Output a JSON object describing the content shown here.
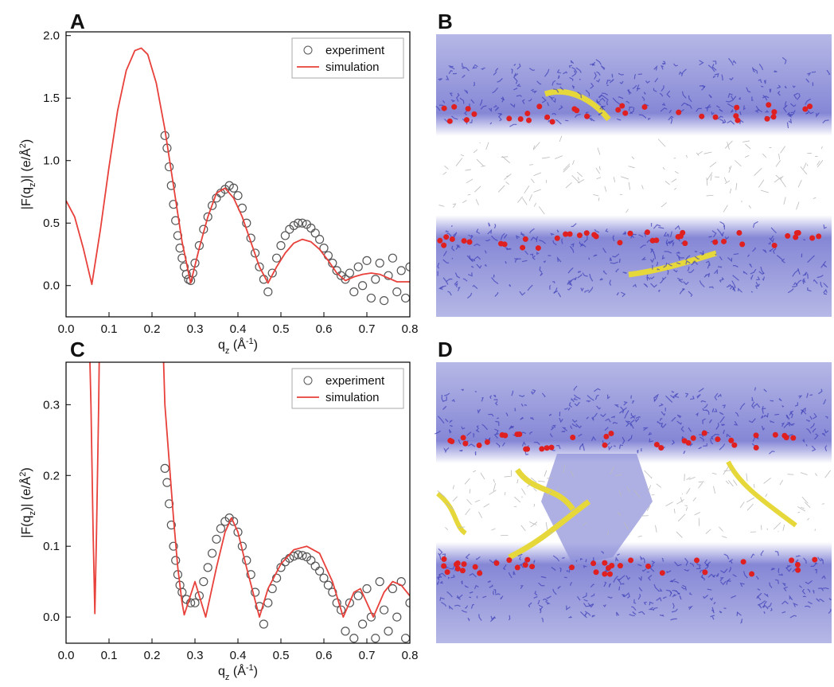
{
  "chart_data": [
    {
      "type": "line",
      "panel": "A",
      "xlabel_parts": [
        "q",
        "z",
        " (Å",
        "-1",
        ")"
      ],
      "ylabel_parts": [
        "|F(q",
        "z",
        ")| (e/Å",
        "2",
        ")"
      ],
      "xlim": [
        0,
        0.8
      ],
      "ylim": [
        -0.25,
        2.03
      ],
      "xticks": [
        {
          "value": 0,
          "label": "0.0"
        },
        0.1,
        0.2,
        0.3,
        0.4,
        0.5,
        0.6,
        0.7,
        0.8
      ],
      "yticks": [
        {
          "value": 0,
          "label": "0.0"
        },
        0.5,
        {
          "value": 1,
          "label": "1.0"
        },
        1.5,
        {
          "value": 2,
          "label": "2.0"
        }
      ],
      "legend": "upper right",
      "series": [
        {
          "name": "experiment",
          "type": "scatter",
          "color": "#555555",
          "x": [
            0.23,
            0.235,
            0.24,
            0.245,
            0.25,
            0.255,
            0.26,
            0.265,
            0.27,
            0.275,
            0.28,
            0.285,
            0.29,
            0.295,
            0.3,
            0.31,
            0.32,
            0.33,
            0.34,
            0.35,
            0.36,
            0.37,
            0.38,
            0.39,
            0.4,
            0.41,
            0.42,
            0.43,
            0.44,
            0.45,
            0.46,
            0.47,
            0.48,
            0.49,
            0.5,
            0.51,
            0.52,
            0.53,
            0.54,
            0.55,
            0.56,
            0.57,
            0.58,
            0.59,
            0.6,
            0.61,
            0.62,
            0.63,
            0.64,
            0.65,
            0.66,
            0.67,
            0.68,
            0.69,
            0.7,
            0.71,
            0.72,
            0.73,
            0.74,
            0.75,
            0.76,
            0.77,
            0.78,
            0.79,
            0.8
          ],
          "values": [
            1.2,
            1.1,
            0.95,
            0.8,
            0.65,
            0.52,
            0.4,
            0.3,
            0.22,
            0.15,
            0.09,
            0.05,
            0.04,
            0.1,
            0.18,
            0.32,
            0.45,
            0.55,
            0.64,
            0.7,
            0.74,
            0.77,
            0.8,
            0.78,
            0.72,
            0.62,
            0.5,
            0.38,
            0.26,
            0.15,
            0.05,
            -0.05,
            0.1,
            0.22,
            0.32,
            0.4,
            0.45,
            0.48,
            0.5,
            0.5,
            0.49,
            0.46,
            0.42,
            0.37,
            0.3,
            0.24,
            0.18,
            0.12,
            0.08,
            0.05,
            0.1,
            -0.05,
            0.15,
            0,
            0.2,
            -0.1,
            0.05,
            0.18,
            -0.12,
            0.08,
            0.22,
            -0.05,
            0.12,
            -0.1,
            0.15
          ]
        },
        {
          "name": "simulation",
          "type": "line",
          "color": "#e8403a",
          "x": [
            0,
            0.02,
            0.04,
            0.06,
            0.08,
            0.1,
            0.12,
            0.14,
            0.16,
            0.175,
            0.19,
            0.21,
            0.23,
            0.25,
            0.27,
            0.29,
            0.31,
            0.33,
            0.35,
            0.37,
            0.39,
            0.41,
            0.43,
            0.45,
            0.47,
            0.49,
            0.51,
            0.53,
            0.55,
            0.57,
            0.59,
            0.61,
            0.63,
            0.65,
            0.67,
            0.69,
            0.71,
            0.73,
            0.75,
            0.77,
            0.79,
            0.8
          ],
          "values": [
            0.68,
            0.55,
            0.3,
            0.01,
            0.45,
            0.95,
            1.4,
            1.72,
            1.88,
            1.9,
            1.85,
            1.62,
            1.25,
            0.8,
            0.35,
            0.02,
            0.3,
            0.55,
            0.74,
            0.78,
            0.7,
            0.55,
            0.35,
            0.15,
            0.02,
            0.15,
            0.26,
            0.34,
            0.37,
            0.35,
            0.29,
            0.2,
            0.1,
            0.04,
            0.07,
            0.09,
            0.1,
            0.09,
            0.06,
            0.03,
            0.03,
            0.03
          ]
        }
      ]
    },
    {
      "type": "line",
      "panel": "C",
      "xlabel_parts": [
        "q",
        "z",
        " (Å",
        "-1",
        ")"
      ],
      "ylabel_parts": [
        "|F(q",
        "z",
        ")| (e/Å",
        "2",
        ")"
      ],
      "xlim": [
        0,
        0.8
      ],
      "ylim": [
        -0.037,
        0.36
      ],
      "xticks": [
        {
          "value": 0,
          "label": "0.0"
        },
        0.1,
        0.2,
        0.3,
        0.4,
        0.5,
        0.6,
        0.7,
        0.8
      ],
      "yticks": [
        {
          "value": 0,
          "label": "0.0"
        },
        0.1,
        0.2,
        0.3
      ],
      "legend": "upper right",
      "series": [
        {
          "name": "experiment",
          "type": "scatter",
          "color": "#555555",
          "x": [
            0.23,
            0.235,
            0.24,
            0.245,
            0.25,
            0.255,
            0.26,
            0.265,
            0.27,
            0.28,
            0.29,
            0.3,
            0.31,
            0.32,
            0.33,
            0.34,
            0.35,
            0.36,
            0.37,
            0.38,
            0.39,
            0.4,
            0.41,
            0.42,
            0.43,
            0.44,
            0.45,
            0.46,
            0.47,
            0.48,
            0.49,
            0.5,
            0.51,
            0.52,
            0.53,
            0.54,
            0.55,
            0.56,
            0.57,
            0.58,
            0.59,
            0.6,
            0.61,
            0.62,
            0.63,
            0.64,
            0.65,
            0.66,
            0.67,
            0.68,
            0.69,
            0.7,
            0.71,
            0.72,
            0.73,
            0.74,
            0.75,
            0.76,
            0.77,
            0.78,
            0.79,
            0.8
          ],
          "values": [
            0.21,
            0.19,
            0.16,
            0.13,
            0.1,
            0.08,
            0.06,
            0.045,
            0.035,
            0.025,
            0.02,
            0.02,
            0.03,
            0.05,
            0.07,
            0.09,
            0.11,
            0.125,
            0.135,
            0.14,
            0.135,
            0.12,
            0.1,
            0.08,
            0.06,
            0.035,
            0.015,
            -0.01,
            0.02,
            0.04,
            0.055,
            0.07,
            0.078,
            0.083,
            0.086,
            0.088,
            0.087,
            0.085,
            0.08,
            0.072,
            0.065,
            0.055,
            0.045,
            0.035,
            0.02,
            0.01,
            -0.02,
            0.02,
            -0.03,
            0.03,
            -0.01,
            0.04,
            0,
            -0.03,
            0.05,
            0.01,
            -0.02,
            0.04,
            0,
            0.05,
            -0.03,
            0.02
          ]
        },
        {
          "name": "simulation",
          "type": "line",
          "color": "#e8403a",
          "x": [
            0.05,
            0.058,
            0.063,
            0.067,
            0.071,
            0.076,
            0.08,
            0.15,
            0.22,
            0.23,
            0.24,
            0.25,
            0.26,
            0.27,
            0.275,
            0.3,
            0.325,
            0.35,
            0.37,
            0.385,
            0.4,
            0.42,
            0.45,
            0.47,
            0.5,
            0.53,
            0.56,
            0.59,
            0.62,
            0.645,
            0.67,
            0.685,
            0.7,
            0.715,
            0.74,
            0.76,
            0.78,
            0.8
          ],
          "values": [
            0.5,
            0.3,
            0.12,
            0.005,
            0.12,
            0.3,
            0.5,
            null,
            0.5,
            0.3,
            0.22,
            0.14,
            0.07,
            0.02,
            0.003,
            0.05,
            0,
            0.07,
            0.12,
            0.14,
            0.12,
            0.07,
            0,
            0.04,
            0.075,
            0.095,
            0.1,
            0.09,
            0.05,
            0,
            0.035,
            0.04,
            0.02,
            0,
            0.035,
            0.05,
            0.045,
            0.03
          ]
        }
      ]
    }
  ],
  "images": [
    {
      "label": "B"
    },
    {
      "label": "D"
    }
  ]
}
